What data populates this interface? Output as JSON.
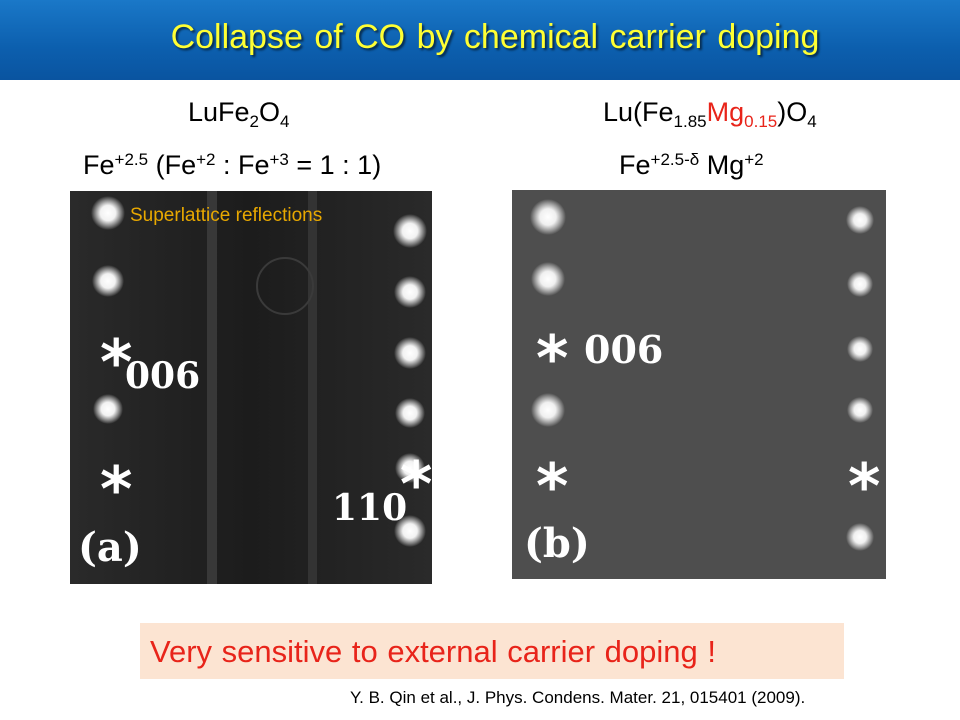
{
  "title": "Collapse of CO by chemical carrier doping",
  "left": {
    "compound": {
      "a": "LuFe",
      "b": "2",
      "c": "O",
      "d": "4"
    },
    "valence": {
      "a": "Fe",
      "b": "+2.5",
      "c": " (Fe",
      "d": "+2",
      "e": " : Fe",
      "f": "+3",
      "g": " = 1 : 1)"
    },
    "overlay_label": "Superlattice reflections",
    "markers": {
      "star": "*",
      "index_006": "006",
      "index_110": "110",
      "panel": "(a)"
    }
  },
  "right": {
    "compound": {
      "a": "Lu(Fe",
      "b": "1.85",
      "c": "Mg",
      "d": "0.15",
      "e": ")O",
      "f": "4"
    },
    "valence": {
      "a": "Fe",
      "b": "+2.5-δ",
      "c": " Mg",
      "d": "+2"
    },
    "markers": {
      "star": "*",
      "index_006": "006",
      "panel": "(b)"
    }
  },
  "conclusion": "Very sensitive to external carrier doping !",
  "reference": {
    "a": "Y. B. Qin ",
    "b": "et al",
    "c": "., ",
    "d": "J. Phys. Condens. Mater",
    "e": ". ",
    "f": "21",
    "g": ", 015401 (2009)."
  },
  "colors": {
    "banner": "#0c5fae",
    "title": "#ffff33",
    "accent_red": "#e8241a",
    "label_orange": "#e8a800",
    "note_bg": "#fce4d2"
  }
}
